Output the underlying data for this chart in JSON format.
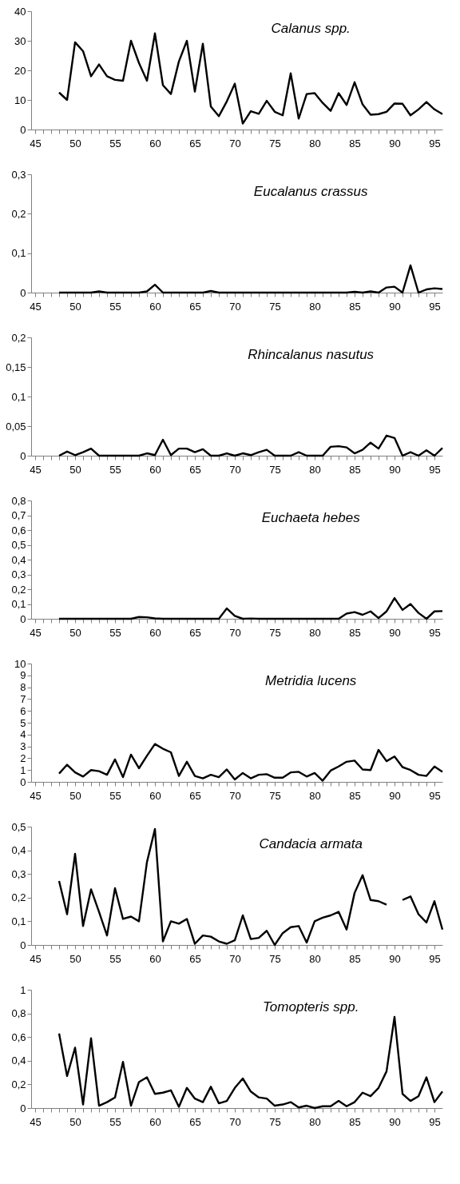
{
  "chart_data": [
    {
      "type": "line",
      "title": "Calanus spp.",
      "x": [
        48,
        49,
        50,
        51,
        52,
        53,
        54,
        55,
        56,
        57,
        58,
        59,
        60,
        61,
        62,
        63,
        64,
        65,
        66,
        67,
        68,
        69,
        70,
        71,
        72,
        73,
        74,
        75,
        76,
        77,
        78,
        79,
        80,
        81,
        82,
        83,
        84,
        85,
        86,
        87,
        88,
        89,
        90,
        91,
        92,
        93,
        94,
        95,
        96
      ],
      "series": [
        {
          "color": "#000000",
          "values": [
            12.5,
            10,
            29.5,
            26.5,
            18,
            22,
            18,
            16.8,
            16.5,
            30,
            22.5,
            16.5,
            32.5,
            15,
            12,
            23,
            30,
            12.8,
            29,
            7.8,
            4.5,
            9.5,
            15.5,
            2,
            6.2,
            5.3,
            9.7,
            6,
            4.8,
            19,
            3.7,
            12,
            12.3,
            9,
            6.3,
            12.3,
            8.3,
            16,
            8.5,
            5,
            5.2,
            6,
            8.8,
            8.7,
            4.8,
            6.8,
            9.3,
            6.8,
            5.2
          ]
        }
      ],
      "xlim": [
        44.5,
        96
      ],
      "xticks": [
        45,
        {
          "value": 46,
          "label": null
        },
        {
          "value": 47,
          "label": null
        },
        {
          "value": 48,
          "label": null
        },
        {
          "value": 49,
          "label": null
        },
        50,
        {
          "value": 51,
          "label": null
        },
        {
          "value": 52,
          "label": null
        },
        {
          "value": 53,
          "label": null
        },
        {
          "value": 54,
          "label": null
        },
        55,
        {
          "value": 56,
          "label": null
        },
        {
          "value": 57,
          "label": null
        },
        {
          "value": 58,
          "label": null
        },
        {
          "value": 59,
          "label": null
        },
        60,
        {
          "value": 61,
          "label": null
        },
        {
          "value": 62,
          "label": null
        },
        {
          "value": 63,
          "label": null
        },
        {
          "value": 64,
          "label": null
        },
        65,
        {
          "value": 66,
          "label": null
        },
        {
          "value": 67,
          "label": null
        },
        {
          "value": 68,
          "label": null
        },
        {
          "value": 69,
          "label": null
        },
        70,
        {
          "value": 71,
          "label": null
        },
        {
          "value": 72,
          "label": null
        },
        {
          "value": 73,
          "label": null
        },
        {
          "value": 74,
          "label": null
        },
        75,
        {
          "value": 76,
          "label": null
        },
        {
          "value": 77,
          "label": null
        },
        {
          "value": 78,
          "label": null
        },
        {
          "value": 79,
          "label": null
        },
        80,
        {
          "value": 81,
          "label": null
        },
        {
          "value": 82,
          "label": null
        },
        {
          "value": 83,
          "label": null
        },
        {
          "value": 84,
          "label": null
        },
        85,
        {
          "value": 86,
          "label": null
        },
        {
          "value": 87,
          "label": null
        },
        {
          "value": 88,
          "label": null
        },
        {
          "value": 89,
          "label": null
        },
        90,
        {
          "value": 91,
          "label": null
        },
        {
          "value": 92,
          "label": null
        },
        {
          "value": 93,
          "label": null
        },
        {
          "value": 94,
          "label": null
        },
        95
      ],
      "ylim": [
        0,
        40
      ],
      "yticks": [
        0,
        10,
        20,
        30,
        40
      ]
    },
    {
      "type": "line",
      "title": "Eucalanus crassus",
      "x": [
        48,
        49,
        50,
        51,
        52,
        53,
        54,
        55,
        56,
        57,
        58,
        59,
        60,
        61,
        62,
        63,
        64,
        65,
        66,
        67,
        68,
        69,
        70,
        71,
        72,
        73,
        74,
        75,
        76,
        77,
        78,
        79,
        80,
        81,
        82,
        83,
        84,
        85,
        86,
        87,
        88,
        89,
        90,
        91,
        92,
        93,
        94,
        95,
        96
      ],
      "series": [
        {
          "color": "#000000",
          "values": [
            0,
            0,
            0,
            0,
            0,
            0.003,
            0,
            0,
            0,
            0,
            0,
            0.003,
            0.02,
            0,
            0,
            0,
            0,
            0,
            0,
            0.004,
            0,
            0,
            0,
            0,
            0,
            0,
            0,
            0,
            0,
            0,
            0,
            0,
            0,
            0,
            0,
            0,
            0,
            0.002,
            0,
            0.003,
            0,
            0.013,
            0.015,
            0,
            0.069,
            0,
            0.008,
            0.011,
            0.009
          ]
        }
      ],
      "xlim": [
        44.5,
        96
      ],
      "xticks": [
        45,
        {
          "value": 46,
          "label": null
        },
        {
          "value": 47,
          "label": null
        },
        {
          "value": 48,
          "label": null
        },
        {
          "value": 49,
          "label": null
        },
        50,
        {
          "value": 51,
          "label": null
        },
        {
          "value": 52,
          "label": null
        },
        {
          "value": 53,
          "label": null
        },
        {
          "value": 54,
          "label": null
        },
        55,
        {
          "value": 56,
          "label": null
        },
        {
          "value": 57,
          "label": null
        },
        {
          "value": 58,
          "label": null
        },
        {
          "value": 59,
          "label": null
        },
        60,
        {
          "value": 61,
          "label": null
        },
        {
          "value": 62,
          "label": null
        },
        {
          "value": 63,
          "label": null
        },
        {
          "value": 64,
          "label": null
        },
        65,
        {
          "value": 66,
          "label": null
        },
        {
          "value": 67,
          "label": null
        },
        {
          "value": 68,
          "label": null
        },
        {
          "value": 69,
          "label": null
        },
        70,
        {
          "value": 71,
          "label": null
        },
        {
          "value": 72,
          "label": null
        },
        {
          "value": 73,
          "label": null
        },
        {
          "value": 74,
          "label": null
        },
        75,
        {
          "value": 76,
          "label": null
        },
        {
          "value": 77,
          "label": null
        },
        {
          "value": 78,
          "label": null
        },
        {
          "value": 79,
          "label": null
        },
        80,
        {
          "value": 81,
          "label": null
        },
        {
          "value": 82,
          "label": null
        },
        {
          "value": 83,
          "label": null
        },
        {
          "value": 84,
          "label": null
        },
        85,
        {
          "value": 86,
          "label": null
        },
        {
          "value": 87,
          "label": null
        },
        {
          "value": 88,
          "label": null
        },
        {
          "value": 89,
          "label": null
        },
        90,
        {
          "value": 91,
          "label": null
        },
        {
          "value": 92,
          "label": null
        },
        {
          "value": 93,
          "label": null
        },
        {
          "value": 94,
          "label": null
        },
        95
      ],
      "ylim": [
        0,
        0.3
      ],
      "yticks": [
        0,
        {
          "value": 0.1,
          "label": "0,1"
        },
        {
          "value": 0.2,
          "label": "0,2"
        },
        {
          "value": 0.3,
          "label": "0,3"
        }
      ]
    },
    {
      "type": "line",
      "title": "Rhincalanus  nasutus",
      "x": [
        48,
        49,
        50,
        51,
        52,
        53,
        54,
        55,
        56,
        57,
        58,
        59,
        60,
        61,
        62,
        63,
        64,
        65,
        66,
        67,
        68,
        69,
        70,
        71,
        72,
        73,
        74,
        75,
        76,
        77,
        78,
        79,
        80,
        81,
        82,
        83,
        84,
        85,
        86,
        87,
        88,
        89,
        90,
        91,
        92,
        93,
        94,
        95,
        96
      ],
      "series": [
        {
          "color": "#000000",
          "values": [
            0,
            0.007,
            0.001,
            0.006,
            0.012,
            0,
            0,
            0,
            0,
            0,
            0,
            0.004,
            0.001,
            0.027,
            0.001,
            0.012,
            0.012,
            0.006,
            0.011,
            0,
            0,
            0.004,
            0,
            0.004,
            0.001,
            0.006,
            0.01,
            0,
            0,
            0,
            0.006,
            0,
            0,
            0,
            0.015,
            0.016,
            0.014,
            0.004,
            0.01,
            0.022,
            0.012,
            0.034,
            0.03,
            0,
            0.006,
            0,
            0.009,
            0,
            0.013
          ]
        }
      ],
      "xlim": [
        44.5,
        96
      ],
      "xticks": [
        45,
        {
          "value": 46,
          "label": null
        },
        {
          "value": 47,
          "label": null
        },
        {
          "value": 48,
          "label": null
        },
        {
          "value": 49,
          "label": null
        },
        50,
        {
          "value": 51,
          "label": null
        },
        {
          "value": 52,
          "label": null
        },
        {
          "value": 53,
          "label": null
        },
        {
          "value": 54,
          "label": null
        },
        55,
        {
          "value": 56,
          "label": null
        },
        {
          "value": 57,
          "label": null
        },
        {
          "value": 58,
          "label": null
        },
        {
          "value": 59,
          "label": null
        },
        60,
        {
          "value": 61,
          "label": null
        },
        {
          "value": 62,
          "label": null
        },
        {
          "value": 63,
          "label": null
        },
        {
          "value": 64,
          "label": null
        },
        65,
        {
          "value": 66,
          "label": null
        },
        {
          "value": 67,
          "label": null
        },
        {
          "value": 68,
          "label": null
        },
        {
          "value": 69,
          "label": null
        },
        70,
        {
          "value": 71,
          "label": null
        },
        {
          "value": 72,
          "label": null
        },
        {
          "value": 73,
          "label": null
        },
        {
          "value": 74,
          "label": null
        },
        75,
        {
          "value": 76,
          "label": null
        },
        {
          "value": 77,
          "label": null
        },
        {
          "value": 78,
          "label": null
        },
        {
          "value": 79,
          "label": null
        },
        80,
        {
          "value": 81,
          "label": null
        },
        {
          "value": 82,
          "label": null
        },
        {
          "value": 83,
          "label": null
        },
        {
          "value": 84,
          "label": null
        },
        85,
        {
          "value": 86,
          "label": null
        },
        {
          "value": 87,
          "label": null
        },
        {
          "value": 88,
          "label": null
        },
        {
          "value": 89,
          "label": null
        },
        90,
        {
          "value": 91,
          "label": null
        },
        {
          "value": 92,
          "label": null
        },
        {
          "value": 93,
          "label": null
        },
        {
          "value": 94,
          "label": null
        },
        95
      ],
      "ylim": [
        0,
        0.2
      ],
      "yticks": [
        0,
        {
          "value": 0.05,
          "label": "0,05"
        },
        {
          "value": 0.1,
          "label": "0,1"
        },
        {
          "value": 0.15,
          "label": "0,15"
        },
        {
          "value": 0.2,
          "label": "0,2"
        }
      ]
    },
    {
      "type": "line",
      "title": "Euchaeta hebes",
      "x": [
        48,
        49,
        50,
        51,
        52,
        53,
        54,
        55,
        56,
        57,
        58,
        59,
        60,
        61,
        62,
        63,
        64,
        65,
        66,
        67,
        68,
        69,
        70,
        71,
        72,
        73,
        74,
        75,
        76,
        77,
        78,
        79,
        80,
        81,
        82,
        83,
        84,
        85,
        86,
        87,
        88,
        89,
        90,
        91,
        92,
        93,
        94,
        95,
        96
      ],
      "series": [
        {
          "color": "#000000",
          "values": [
            0,
            0,
            0,
            0,
            0,
            0,
            0,
            0,
            0,
            0,
            0.012,
            0.01,
            0.003,
            0,
            0,
            0,
            0,
            0,
            0,
            0,
            0,
            0.07,
            0.02,
            0,
            0.002,
            0,
            0,
            0,
            0,
            0,
            0,
            0,
            0,
            0,
            0,
            0,
            0.035,
            0.045,
            0.027,
            0.05,
            0.005,
            0.05,
            0.14,
            0.06,
            0.1,
            0.04,
            0,
            0.05,
            0.052
          ]
        }
      ],
      "xlim": [
        44.5,
        96
      ],
      "xticks": [
        45,
        {
          "value": 46,
          "label": null
        },
        {
          "value": 47,
          "label": null
        },
        {
          "value": 48,
          "label": null
        },
        {
          "value": 49,
          "label": null
        },
        50,
        {
          "value": 51,
          "label": null
        },
        {
          "value": 52,
          "label": null
        },
        {
          "value": 53,
          "label": null
        },
        {
          "value": 54,
          "label": null
        },
        55,
        {
          "value": 56,
          "label": null
        },
        {
          "value": 57,
          "label": null
        },
        {
          "value": 58,
          "label": null
        },
        {
          "value": 59,
          "label": null
        },
        60,
        {
          "value": 61,
          "label": null
        },
        {
          "value": 62,
          "label": null
        },
        {
          "value": 63,
          "label": null
        },
        {
          "value": 64,
          "label": null
        },
        65,
        {
          "value": 66,
          "label": null
        },
        {
          "value": 67,
          "label": null
        },
        {
          "value": 68,
          "label": null
        },
        {
          "value": 69,
          "label": null
        },
        70,
        {
          "value": 71,
          "label": null
        },
        {
          "value": 72,
          "label": null
        },
        {
          "value": 73,
          "label": null
        },
        {
          "value": 74,
          "label": null
        },
        75,
        {
          "value": 76,
          "label": null
        },
        {
          "value": 77,
          "label": null
        },
        {
          "value": 78,
          "label": null
        },
        {
          "value": 79,
          "label": null
        },
        80,
        {
          "value": 81,
          "label": null
        },
        {
          "value": 82,
          "label": null
        },
        {
          "value": 83,
          "label": null
        },
        {
          "value": 84,
          "label": null
        },
        85,
        {
          "value": 86,
          "label": null
        },
        {
          "value": 87,
          "label": null
        },
        {
          "value": 88,
          "label": null
        },
        {
          "value": 89,
          "label": null
        },
        90,
        {
          "value": 91,
          "label": null
        },
        {
          "value": 92,
          "label": null
        },
        {
          "value": 93,
          "label": null
        },
        {
          "value": 94,
          "label": null
        },
        95
      ],
      "ylim": [
        0,
        0.8
      ],
      "yticks": [
        0,
        {
          "value": 0.1,
          "label": "0,1"
        },
        {
          "value": 0.2,
          "label": "0,2"
        },
        {
          "value": 0.3,
          "label": "0,3"
        },
        {
          "value": 0.4,
          "label": "0,4"
        },
        {
          "value": 0.5,
          "label": "0,5"
        },
        {
          "value": 0.6,
          "label": "0,6"
        },
        {
          "value": 0.7,
          "label": "0,7"
        },
        {
          "value": 0.8,
          "label": "0,8"
        }
      ]
    },
    {
      "type": "line",
      "title": "Metridia lucens",
      "x": [
        48,
        49,
        50,
        51,
        52,
        53,
        54,
        55,
        56,
        57,
        58,
        59,
        60,
        61,
        62,
        63,
        64,
        65,
        66,
        67,
        68,
        69,
        70,
        71,
        72,
        73,
        74,
        75,
        76,
        77,
        78,
        79,
        80,
        81,
        82,
        83,
        84,
        85,
        86,
        87,
        88,
        89,
        90,
        91,
        92,
        93,
        94,
        95,
        96
      ],
      "series": [
        {
          "color": "#000000",
          "values": [
            0.7,
            1.45,
            0.8,
            0.45,
            1.0,
            0.9,
            0.6,
            1.9,
            0.4,
            2.3,
            1.15,
            2.2,
            3.2,
            2.8,
            2.5,
            0.5,
            1.7,
            0.5,
            0.3,
            0.6,
            0.4,
            1.05,
            0.2,
            0.75,
            0.3,
            0.6,
            0.65,
            0.35,
            0.35,
            0.8,
            0.85,
            0.45,
            0.75,
            0.1,
            0.95,
            1.3,
            1.7,
            1.8,
            1.05,
            1.0,
            2.7,
            1.75,
            2.15,
            1.25,
            1.0,
            0.6,
            0.5,
            1.3,
            0.85
          ]
        }
      ],
      "xlim": [
        44.5,
        96
      ],
      "xticks": [
        45,
        {
          "value": 46,
          "label": null
        },
        {
          "value": 47,
          "label": null
        },
        {
          "value": 48,
          "label": null
        },
        {
          "value": 49,
          "label": null
        },
        50,
        {
          "value": 51,
          "label": null
        },
        {
          "value": 52,
          "label": null
        },
        {
          "value": 53,
          "label": null
        },
        {
          "value": 54,
          "label": null
        },
        55,
        {
          "value": 56,
          "label": null
        },
        {
          "value": 57,
          "label": null
        },
        {
          "value": 58,
          "label": null
        },
        {
          "value": 59,
          "label": null
        },
        60,
        {
          "value": 61,
          "label": null
        },
        {
          "value": 62,
          "label": null
        },
        {
          "value": 63,
          "label": null
        },
        {
          "value": 64,
          "label": null
        },
        65,
        {
          "value": 66,
          "label": null
        },
        {
          "value": 67,
          "label": null
        },
        {
          "value": 68,
          "label": null
        },
        {
          "value": 69,
          "label": null
        },
        70,
        {
          "value": 71,
          "label": null
        },
        {
          "value": 72,
          "label": null
        },
        {
          "value": 73,
          "label": null
        },
        {
          "value": 74,
          "label": null
        },
        75,
        {
          "value": 76,
          "label": null
        },
        {
          "value": 77,
          "label": null
        },
        {
          "value": 78,
          "label": null
        },
        {
          "value": 79,
          "label": null
        },
        80,
        {
          "value": 81,
          "label": null
        },
        {
          "value": 82,
          "label": null
        },
        {
          "value": 83,
          "label": null
        },
        {
          "value": 84,
          "label": null
        },
        85,
        {
          "value": 86,
          "label": null
        },
        {
          "value": 87,
          "label": null
        },
        {
          "value": 88,
          "label": null
        },
        {
          "value": 89,
          "label": null
        },
        90,
        {
          "value": 91,
          "label": null
        },
        {
          "value": 92,
          "label": null
        },
        {
          "value": 93,
          "label": null
        },
        {
          "value": 94,
          "label": null
        },
        95
      ],
      "ylim": [
        0,
        10
      ],
      "yticks": [
        0,
        1,
        2,
        3,
        4,
        5,
        6,
        7,
        8,
        9,
        10
      ]
    },
    {
      "type": "line",
      "title": "Candacia armata",
      "x": [
        48,
        49,
        50,
        51,
        52,
        53,
        54,
        55,
        56,
        57,
        58,
        59,
        60,
        61,
        62,
        63,
        64,
        65,
        66,
        67,
        68,
        69,
        70,
        71,
        72,
        73,
        74,
        75,
        76,
        77,
        78,
        79,
        80,
        81,
        82,
        83,
        84,
        85,
        86,
        87,
        88,
        89,
        90,
        91,
        92,
        93,
        94,
        95,
        96
      ],
      "series": [
        {
          "color": "#000000",
          "values": [
            0.27,
            0.13,
            0.385,
            0.08,
            0.235,
            0.14,
            0.04,
            0.24,
            0.11,
            0.12,
            0.1,
            0.35,
            0.49,
            0.015,
            0.1,
            0.09,
            0.11,
            0.005,
            0.04,
            0.035,
            0.015,
            0.005,
            0.02,
            0.125,
            0.025,
            0.03,
            0.06,
            0,
            0.05,
            0.075,
            0.08,
            0.01,
            0.1,
            0.115,
            0.125,
            0.14,
            0.065,
            0.22,
            0.295,
            0.19,
            0.185,
            0.17,
            null,
            0.19,
            0.205,
            0.13,
            0.095,
            0.185,
            0.065
          ]
        }
      ],
      "xlim": [
        44.5,
        96
      ],
      "xticks": [
        45,
        {
          "value": 46,
          "label": null
        },
        {
          "value": 47,
          "label": null
        },
        {
          "value": 48,
          "label": null
        },
        {
          "value": 49,
          "label": null
        },
        50,
        {
          "value": 51,
          "label": null
        },
        {
          "value": 52,
          "label": null
        },
        {
          "value": 53,
          "label": null
        },
        {
          "value": 54,
          "label": null
        },
        55,
        {
          "value": 56,
          "label": null
        },
        {
          "value": 57,
          "label": null
        },
        {
          "value": 58,
          "label": null
        },
        {
          "value": 59,
          "label": null
        },
        60,
        {
          "value": 61,
          "label": null
        },
        {
          "value": 62,
          "label": null
        },
        {
          "value": 63,
          "label": null
        },
        {
          "value": 64,
          "label": null
        },
        65,
        {
          "value": 66,
          "label": null
        },
        {
          "value": 67,
          "label": null
        },
        {
          "value": 68,
          "label": null
        },
        {
          "value": 69,
          "label": null
        },
        70,
        {
          "value": 71,
          "label": null
        },
        {
          "value": 72,
          "label": null
        },
        {
          "value": 73,
          "label": null
        },
        {
          "value": 74,
          "label": null
        },
        75,
        {
          "value": 76,
          "label": null
        },
        {
          "value": 77,
          "label": null
        },
        {
          "value": 78,
          "label": null
        },
        {
          "value": 79,
          "label": null
        },
        80,
        {
          "value": 81,
          "label": null
        },
        {
          "value": 82,
          "label": null
        },
        {
          "value": 83,
          "label": null
        },
        {
          "value": 84,
          "label": null
        },
        85,
        {
          "value": 86,
          "label": null
        },
        {
          "value": 87,
          "label": null
        },
        {
          "value": 88,
          "label": null
        },
        {
          "value": 89,
          "label": null
        },
        90,
        {
          "value": 91,
          "label": null
        },
        {
          "value": 92,
          "label": null
        },
        {
          "value": 93,
          "label": null
        },
        {
          "value": 94,
          "label": null
        },
        95
      ],
      "ylim": [
        0,
        0.5
      ],
      "yticks": [
        0,
        {
          "value": 0.1,
          "label": "0,1"
        },
        {
          "value": 0.2,
          "label": "0,2"
        },
        {
          "value": 0.3,
          "label": "0,3"
        },
        {
          "value": 0.4,
          "label": "0,4"
        },
        {
          "value": 0.5,
          "label": "0,5"
        }
      ]
    },
    {
      "type": "line",
      "title": "Tomopteris spp.",
      "x": [
        48,
        49,
        50,
        51,
        52,
        53,
        54,
        55,
        56,
        57,
        58,
        59,
        60,
        61,
        62,
        63,
        64,
        65,
        66,
        67,
        68,
        69,
        70,
        71,
        72,
        73,
        74,
        75,
        76,
        77,
        78,
        79,
        80,
        81,
        82,
        83,
        84,
        85,
        86,
        87,
        88,
        89,
        90,
        91,
        92,
        93,
        94,
        95,
        96
      ],
      "series": [
        {
          "color": "#000000",
          "values": [
            0.63,
            0.27,
            0.51,
            0.03,
            0.59,
            0.02,
            0.05,
            0.09,
            0.39,
            0.02,
            0.22,
            0.26,
            0.12,
            0.13,
            0.15,
            0.01,
            0.17,
            0.08,
            0.05,
            0.18,
            0.04,
            0.06,
            0.17,
            0.25,
            0.14,
            0.09,
            0.08,
            0.02,
            0.03,
            0.05,
            0.005,
            0.02,
            0,
            0.015,
            0.015,
            0.06,
            0.015,
            0.05,
            0.13,
            0.1,
            0.17,
            0.31,
            0.77,
            0.12,
            0.06,
            0.1,
            0.26,
            0.05,
            0.14
          ]
        }
      ],
      "xlim": [
        44.5,
        96
      ],
      "xticks": [
        45,
        {
          "value": 46,
          "label": null
        },
        {
          "value": 47,
          "label": null
        },
        {
          "value": 48,
          "label": null
        },
        {
          "value": 49,
          "label": null
        },
        50,
        {
          "value": 51,
          "label": null
        },
        {
          "value": 52,
          "label": null
        },
        {
          "value": 53,
          "label": null
        },
        {
          "value": 54,
          "label": null
        },
        55,
        {
          "value": 56,
          "label": null
        },
        {
          "value": 57,
          "label": null
        },
        {
          "value": 58,
          "label": null
        },
        {
          "value": 59,
          "label": null
        },
        60,
        {
          "value": 61,
          "label": null
        },
        {
          "value": 62,
          "label": null
        },
        {
          "value": 63,
          "label": null
        },
        {
          "value": 64,
          "label": null
        },
        65,
        {
          "value": 66,
          "label": null
        },
        {
          "value": 67,
          "label": null
        },
        {
          "value": 68,
          "label": null
        },
        {
          "value": 69,
          "label": null
        },
        70,
        {
          "value": 71,
          "label": null
        },
        {
          "value": 72,
          "label": null
        },
        {
          "value": 73,
          "label": null
        },
        {
          "value": 74,
          "label": null
        },
        75,
        {
          "value": 76,
          "label": null
        },
        {
          "value": 77,
          "label": null
        },
        {
          "value": 78,
          "label": null
        },
        {
          "value": 79,
          "label": null
        },
        80,
        {
          "value": 81,
          "label": null
        },
        {
          "value": 82,
          "label": null
        },
        {
          "value": 83,
          "label": null
        },
        {
          "value": 84,
          "label": null
        },
        85,
        {
          "value": 86,
          "label": null
        },
        {
          "value": 87,
          "label": null
        },
        {
          "value": 88,
          "label": null
        },
        {
          "value": 89,
          "label": null
        },
        90,
        {
          "value": 91,
          "label": null
        },
        {
          "value": 92,
          "label": null
        },
        {
          "value": 93,
          "label": null
        },
        {
          "value": 94,
          "label": null
        },
        95
      ],
      "ylim": [
        0,
        1
      ],
      "yticks": [
        0,
        {
          "value": 0.2,
          "label": "0,2"
        },
        {
          "value": 0.4,
          "label": "0,4"
        },
        {
          "value": 0.6,
          "label": "0,6"
        },
        {
          "value": 0.8,
          "label": "0,8"
        },
        1
      ]
    }
  ]
}
